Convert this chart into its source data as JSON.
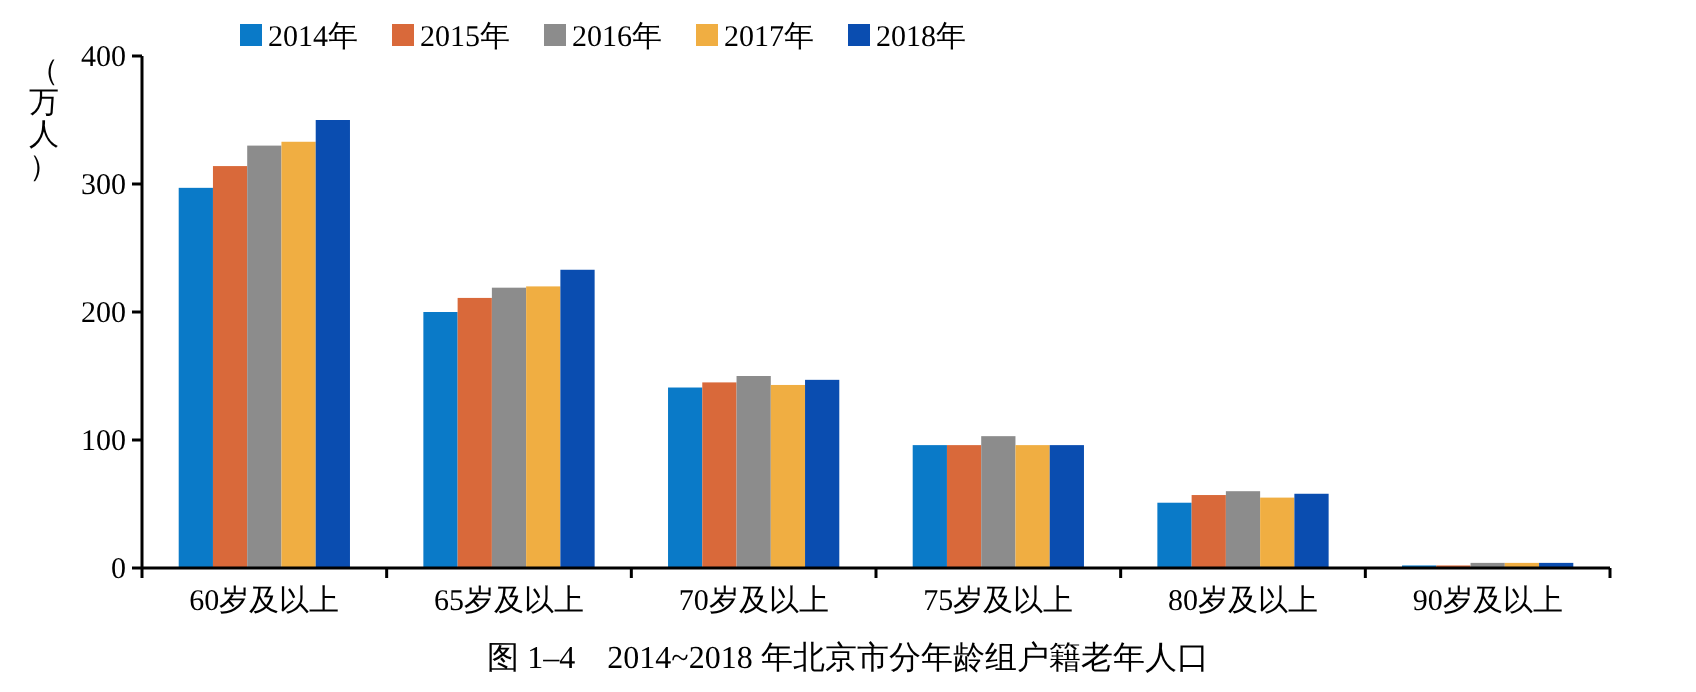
{
  "chart_data": {
    "type": "bar",
    "title": "图 1–4　2014~2018 年北京市分年龄组户籍老年人口",
    "ylabel": "（万人）",
    "categories": [
      "60岁及以上",
      "65岁及以上",
      "70岁及以上",
      "75岁及以上",
      "80岁及以上",
      "90岁及以上"
    ],
    "series": [
      {
        "name": "2014年",
        "color": "#0a7ac8",
        "values": [
          297,
          200,
          141,
          96,
          51,
          2
        ]
      },
      {
        "name": "2015年",
        "color": "#d9693a",
        "values": [
          314,
          211,
          145,
          96,
          57,
          2
        ]
      },
      {
        "name": "2016年",
        "color": "#8c8c8c",
        "values": [
          330,
          219,
          150,
          103,
          60,
          4
        ]
      },
      {
        "name": "2017年",
        "color": "#f0ae42",
        "values": [
          333,
          220,
          143,
          96,
          55,
          4
        ]
      },
      {
        "name": "2018年",
        "color": "#0a4db0",
        "values": [
          350,
          233,
          147,
          96,
          58,
          4
        ]
      }
    ],
    "ylim": [
      0,
      400
    ],
    "yticks": [
      0,
      100,
      200,
      300,
      400
    ],
    "grid": false,
    "legend": "top"
  }
}
